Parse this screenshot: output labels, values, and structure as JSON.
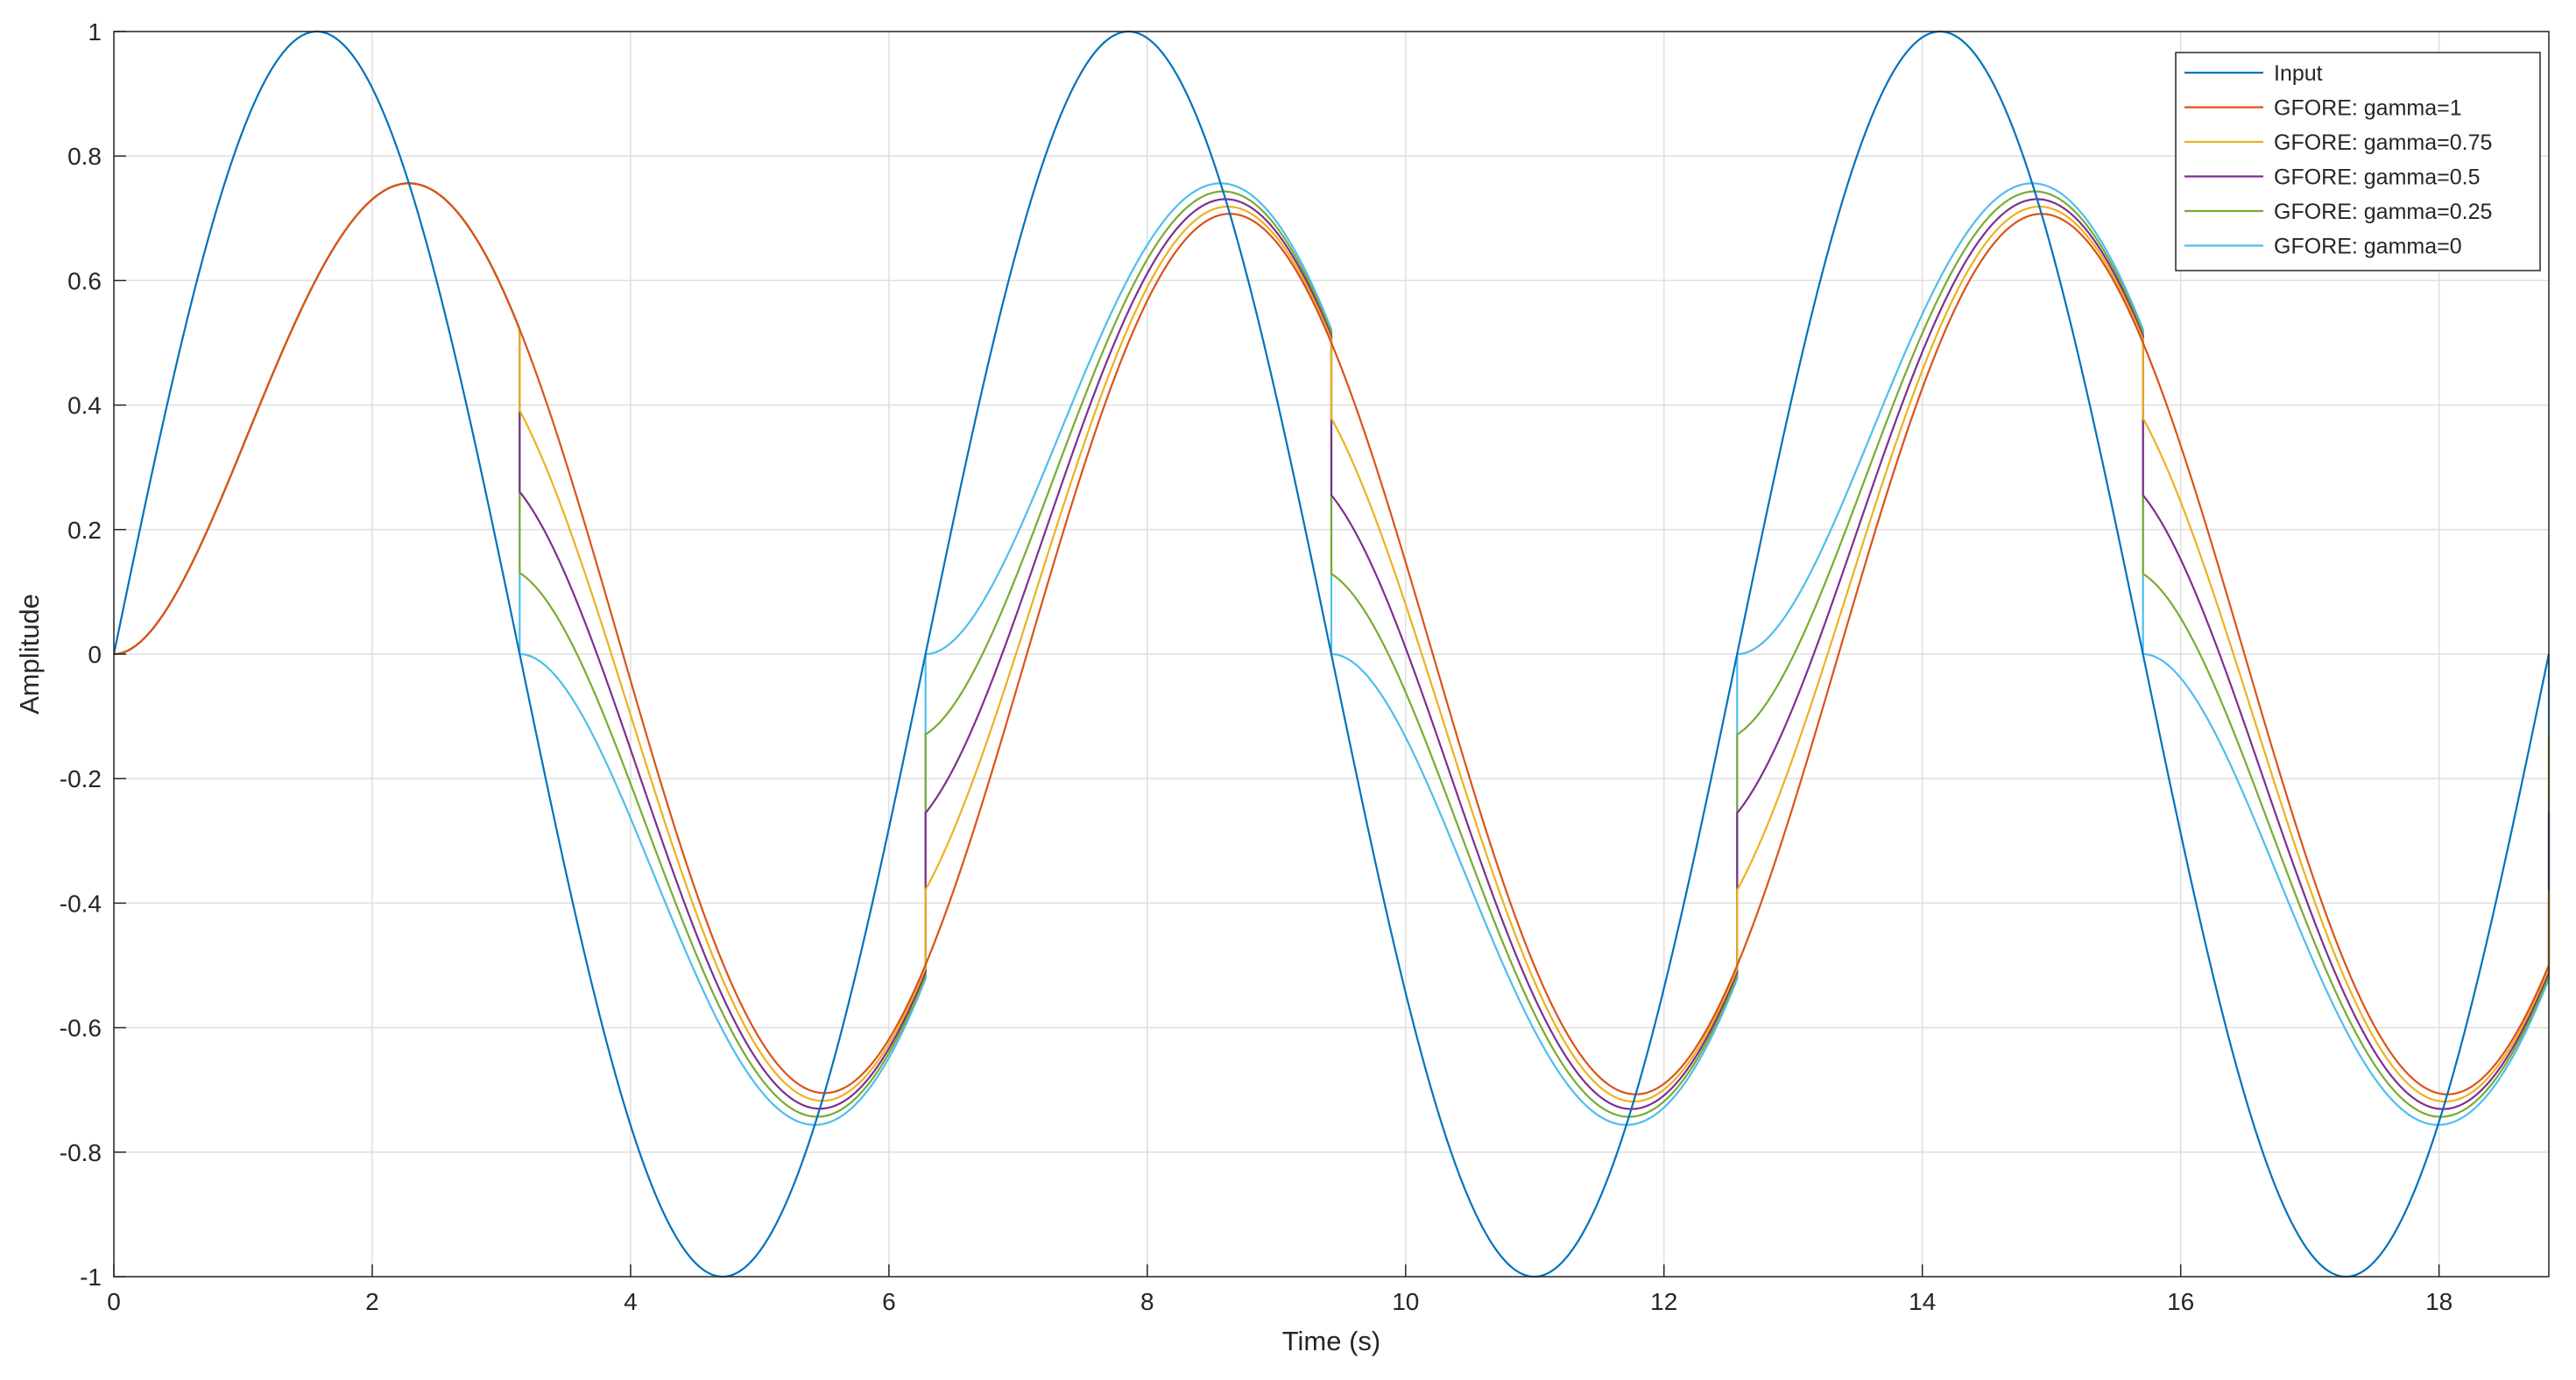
{
  "chart_data": {
    "type": "line",
    "title": "",
    "xlabel": "Time (s)",
    "ylabel": "Amplitude",
    "xlim": [
      0,
      18.85
    ],
    "ylim": [
      -1,
      1
    ],
    "grid": true,
    "legend_position": "top-right",
    "x_ticks": [
      "0",
      "2",
      "4",
      "6",
      "8",
      "10",
      "12",
      "14",
      "16",
      "18"
    ],
    "y_ticks": [
      "-1",
      "-0.8",
      "-0.6",
      "-0.4",
      "-0.2",
      "0",
      "0.2",
      "0.4",
      "0.6",
      "0.8",
      "1"
    ],
    "x_tick_values": [
      0,
      2,
      4,
      6,
      8,
      10,
      12,
      14,
      16,
      18
    ],
    "y_tick_values": [
      -1,
      -0.8,
      -0.6,
      -0.4,
      -0.2,
      0,
      0.2,
      0.4,
      0.6,
      0.8,
      1
    ],
    "reset_times": [
      3.1416,
      6.2832,
      9.4248,
      12.5664,
      15.708,
      18.8496
    ],
    "series": [
      {
        "name": "Input",
        "color": "#0072bd",
        "kind": "sine",
        "amplitude": 1
      },
      {
        "name": "GFORE: gamma=1",
        "color": "#d95319",
        "kind": "gfore",
        "gamma": 1
      },
      {
        "name": "GFORE: gamma=0.75",
        "color": "#edb120",
        "kind": "gfore",
        "gamma": 0.75
      },
      {
        "name": "GFORE: gamma=0.5",
        "color": "#7e2f8e",
        "kind": "gfore",
        "gamma": 0.5
      },
      {
        "name": "GFORE: gamma=0.25",
        "color": "#77ac30",
        "kind": "gfore",
        "gamma": 0.25
      },
      {
        "name": "GFORE: gamma=0",
        "color": "#4dbeee",
        "kind": "gfore",
        "gamma": 0
      }
    ]
  }
}
